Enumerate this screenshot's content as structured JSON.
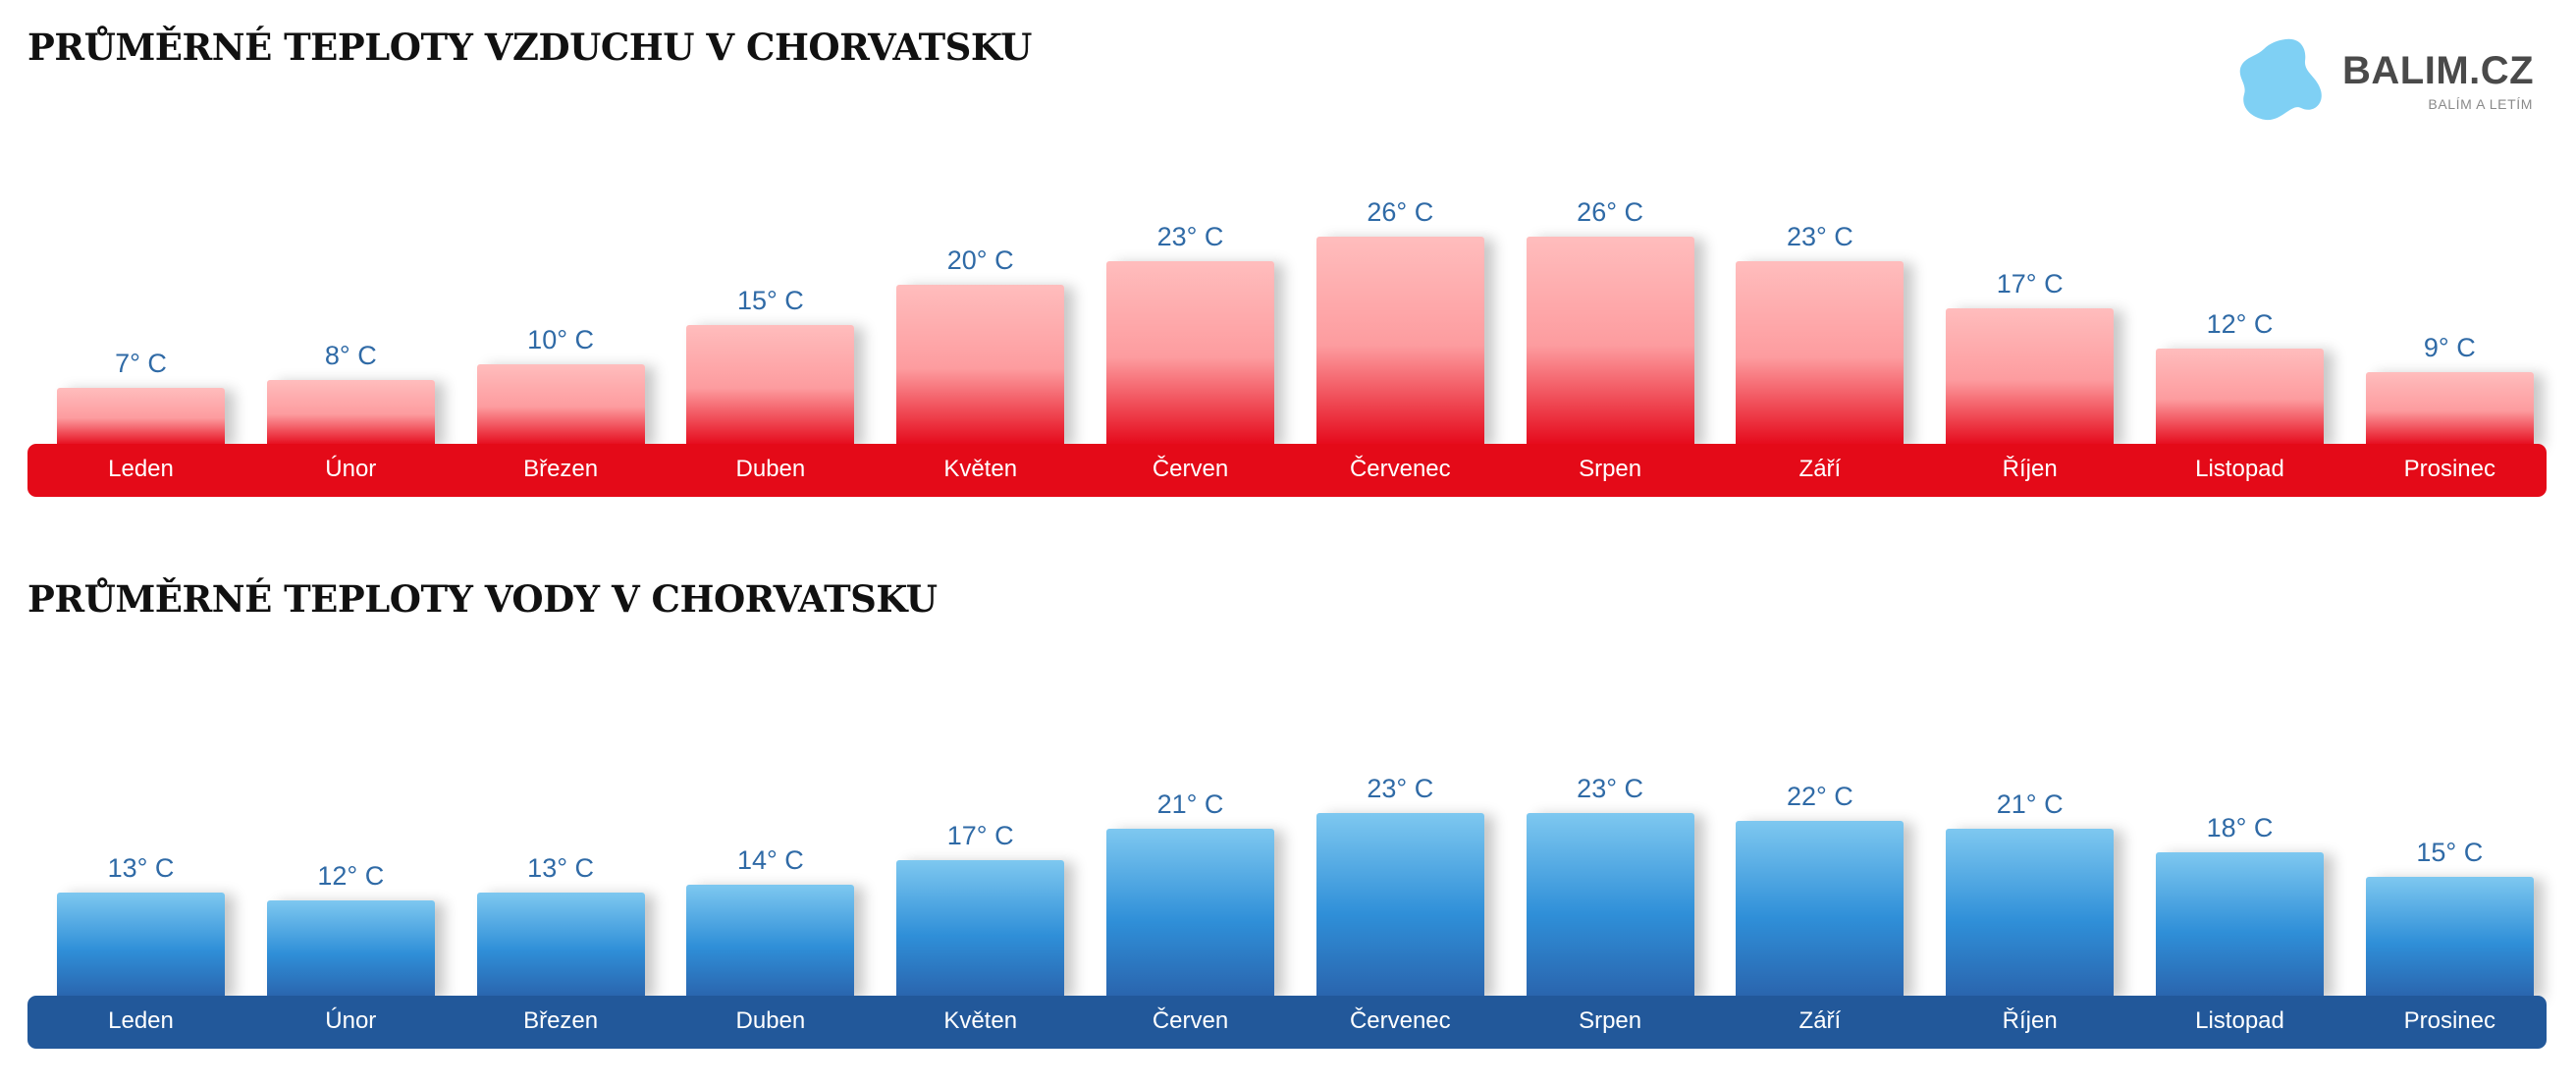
{
  "logo": {
    "name": "BALIM.CZ",
    "tagline": "BALÍM A LETÍM",
    "color": "#7fd0f4"
  },
  "colors": {
    "air_bar_top": "#ffbdbd",
    "air_bar_bottom": "#e5081a",
    "air_band": "#e40a18",
    "water_bar_top": "#7ec8f0",
    "water_bar_bottom": "#2a64ad",
    "water_band": "#22589a",
    "value_label": "#2f6aa6"
  },
  "chart_data": [
    {
      "type": "bar",
      "title": "PRŮMĚRNÉ TEPLOTY VZDUCHU V CHORVATSKU",
      "categories": [
        "Leden",
        "Únor",
        "Březen",
        "Duben",
        "Květen",
        "Červen",
        "Červenec",
        "Srpen",
        "Září",
        "Říjen",
        "Listopad",
        "Prosinec"
      ],
      "values": [
        7,
        8,
        10,
        15,
        20,
        23,
        26,
        26,
        23,
        17,
        12,
        9
      ],
      "data_labels": [
        "7° C",
        "8° C",
        "10° C",
        "15° C",
        "20° C",
        "23° C",
        "26° C",
        "26° C",
        "23° C",
        "17° C",
        "12° C",
        "9° C"
      ],
      "xlabel": "",
      "ylabel": "",
      "grid": false,
      "legend": "none"
    },
    {
      "type": "bar",
      "title": "PRŮMĚRNÉ TEPLOTY VODY V CHORVATSKU",
      "categories": [
        "Leden",
        "Únor",
        "Březen",
        "Duben",
        "Květen",
        "Červen",
        "Červenec",
        "Srpen",
        "Září",
        "Říjen",
        "Listopad",
        "Prosinec"
      ],
      "values": [
        13,
        12,
        13,
        14,
        17,
        21,
        23,
        23,
        22,
        21,
        18,
        15
      ],
      "data_labels": [
        "13° C",
        "12° C",
        "13° C",
        "14° C",
        "17° C",
        "21° C",
        "23° C",
        "23° C",
        "22° C",
        "21° C",
        "18° C",
        "15° C"
      ],
      "xlabel": "",
      "ylabel": "",
      "grid": false,
      "legend": "none"
    }
  ]
}
